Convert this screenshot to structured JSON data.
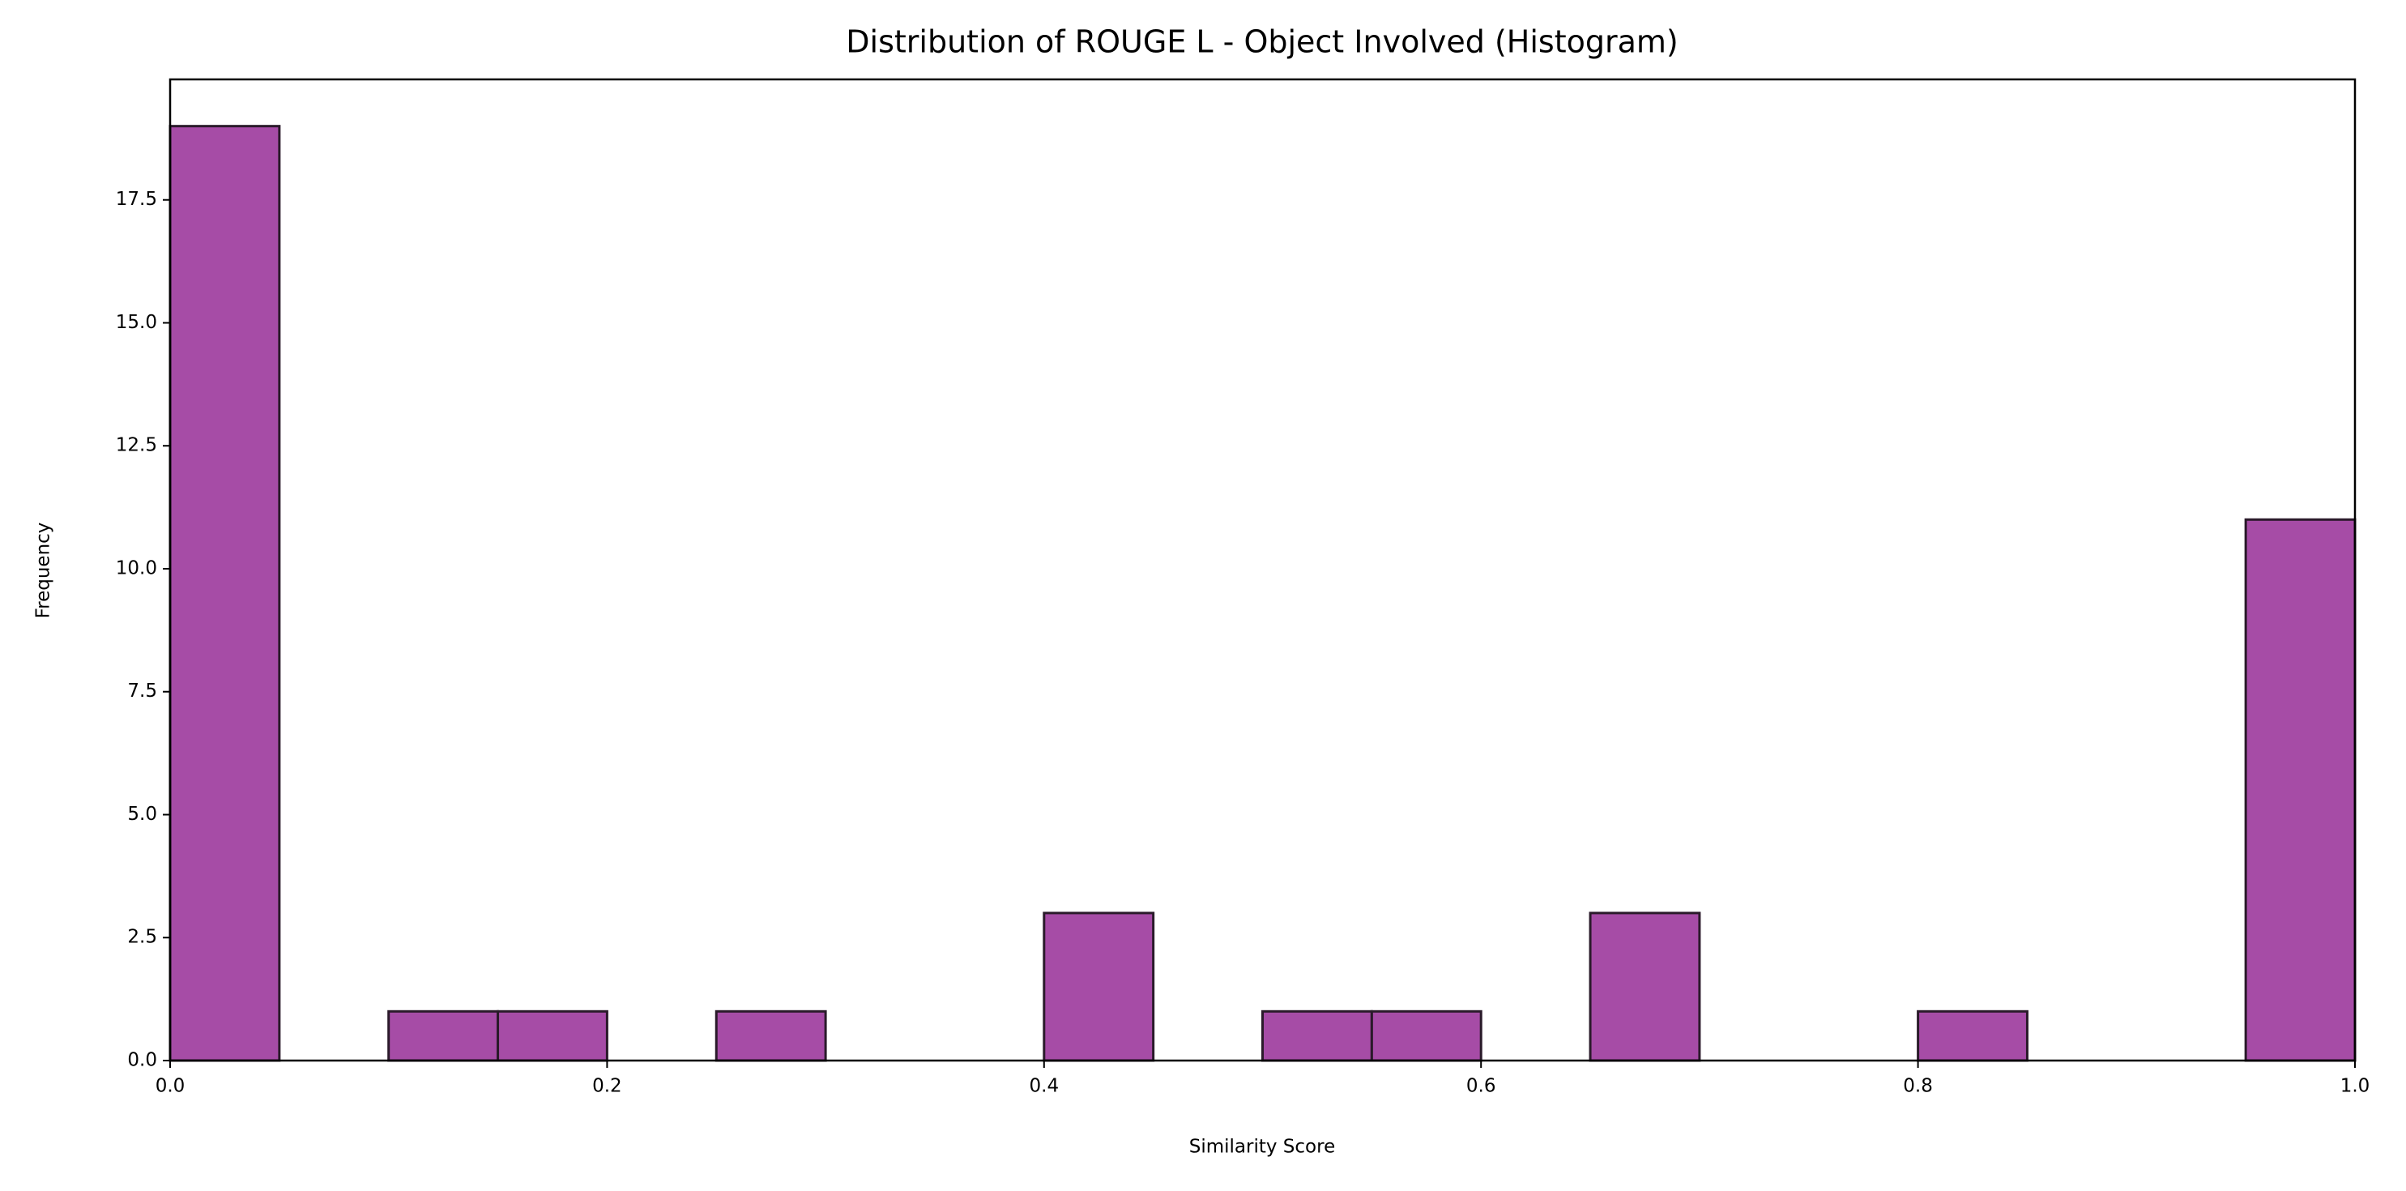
{
  "chart_data": {
    "type": "histogram",
    "title": "Distribution of ROUGE L - Object Involved (Histogram)",
    "xlabel": "Similarity Score",
    "ylabel": "Frequency",
    "bins": [
      0,
      0.05,
      0.1,
      0.15,
      0.2,
      0.25,
      0.3,
      0.35,
      0.4,
      0.45,
      0.5,
      0.55,
      0.6,
      0.65,
      0.7,
      0.75,
      0.8,
      0.85,
      0.9,
      0.95,
      1.0
    ],
    "counts": [
      19,
      0,
      1,
      1,
      0,
      1,
      0,
      0,
      3,
      0,
      1,
      1,
      0,
      3,
      0,
      0,
      1,
      0,
      0,
      11
    ],
    "color": "#a64ca6",
    "edgecolor": "#2a1a2a",
    "xlim": [
      0,
      1.0
    ],
    "xticks": [
      {
        "value": 0,
        "label": "0.0"
      },
      {
        "value": 0.2,
        "label": "0.2"
      },
      {
        "value": 0.4,
        "label": "0.4"
      },
      {
        "value": 0.6,
        "label": "0.6"
      },
      {
        "value": 0.8,
        "label": "0.8"
      },
      {
        "value": 1.0,
        "label": "1.0"
      }
    ],
    "ylim": [
      0,
      19.95
    ],
    "yticks": [
      {
        "value": 0,
        "label": "0.0"
      },
      {
        "value": 2.5,
        "label": "2.5"
      },
      {
        "value": 5,
        "label": "5.0"
      },
      {
        "value": 7.5,
        "label": "7.5"
      },
      {
        "value": 10,
        "label": "10.0"
      },
      {
        "value": 12.5,
        "label": "12.5"
      },
      {
        "value": 15,
        "label": "15.0"
      },
      {
        "value": 17.5,
        "label": "17.5"
      }
    ]
  }
}
